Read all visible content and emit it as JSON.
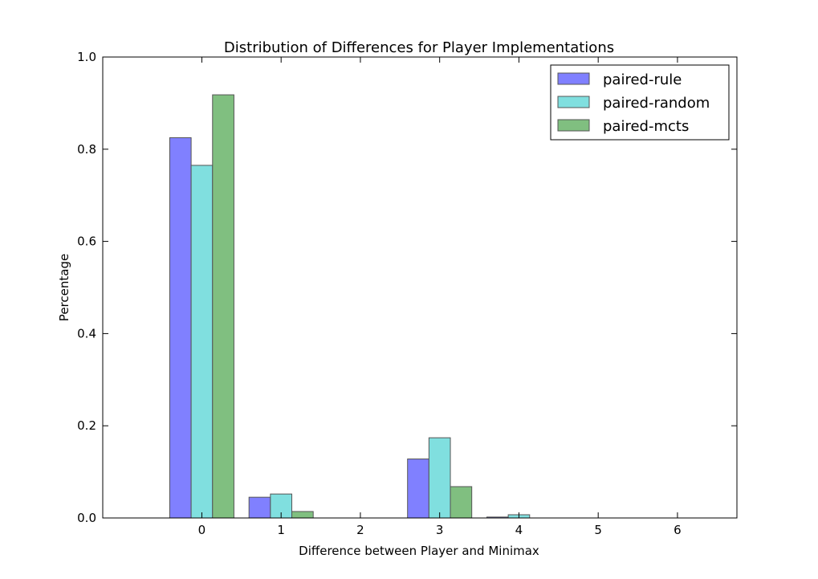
{
  "chart_data": {
    "type": "bar",
    "title": "Distribution of Differences for Player Implementations",
    "xlabel": "Difference between Player and Minimax",
    "ylabel": "Percentage",
    "categories": [
      "0",
      "1",
      "2",
      "3",
      "4",
      "5",
      "6"
    ],
    "x": [
      0,
      1,
      2,
      3,
      4,
      5,
      6
    ],
    "xlim": [
      -1.25,
      6.75
    ],
    "ylim": [
      0,
      1.0
    ],
    "yticks": [
      "0.0",
      "0.2",
      "0.4",
      "0.6",
      "0.8",
      "1.0"
    ],
    "grid": false,
    "legend_position": "top-right",
    "series": [
      {
        "name": "paired-rule",
        "color": "#8080ff",
        "values": [
          0.825,
          0.045,
          0.0,
          0.128,
          0.002,
          0.0,
          0.0
        ]
      },
      {
        "name": "paired-random",
        "color": "#80dfdf",
        "values": [
          0.765,
          0.052,
          0.0,
          0.174,
          0.007,
          0.0,
          0.0
        ]
      },
      {
        "name": "paired-mcts",
        "color": "#80bf80",
        "values": [
          0.918,
          0.014,
          0.0,
          0.068,
          0.0,
          0.0,
          0.0
        ]
      }
    ]
  }
}
